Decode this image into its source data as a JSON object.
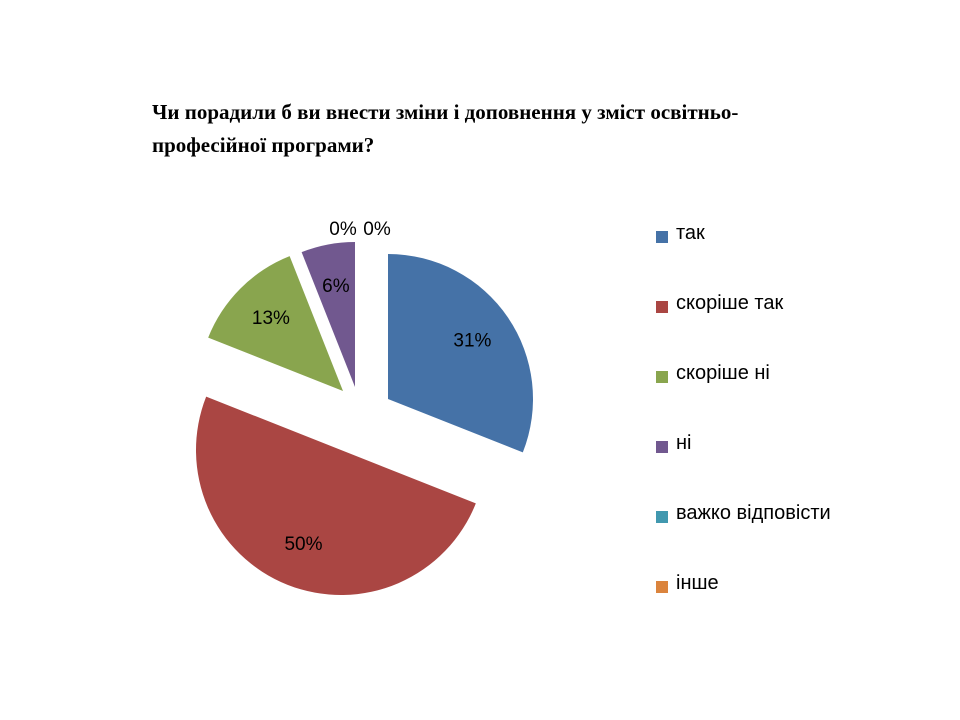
{
  "chart_data": {
    "type": "pie",
    "title": "Чи порадили б ви внести зміни і доповнення у зміст освітньо-професійної програми?",
    "categories": [
      "так",
      "скоріше так",
      "скоріше ні",
      "ні",
      "важко відповісти",
      "інше"
    ],
    "values": [
      31,
      50,
      13,
      6,
      0,
      0
    ],
    "labels": [
      "31%",
      "50%",
      "13%",
      "6%",
      "0%",
      "0%"
    ],
    "colors": [
      "#4572A7",
      "#AA4643",
      "#89A54E",
      "#71588F",
      "#4198AF",
      "#DB843D"
    ],
    "legend_position": "right",
    "exploded": true
  }
}
